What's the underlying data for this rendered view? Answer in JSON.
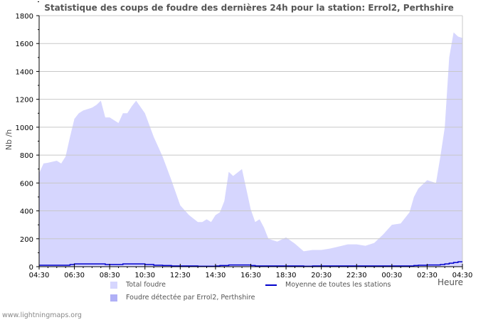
{
  "title": "Statistique des coups de foudre des dernières 24h pour la station: Errol2, Perthshire",
  "footer": "www.lightningmaps.org",
  "colors": {
    "total_fill": "#d6d6fe",
    "station_fill": "#b0b0f6",
    "average_line": "#0000cc",
    "grid": "#c8c8c8",
    "frame": "#c8c8c8"
  },
  "legend": {
    "total": "Total foudre",
    "station": "Foudre détectée par Errol2, Perthshire",
    "average": "Moyenne de toutes les stations"
  },
  "chart_data": {
    "type": "area",
    "title": "Statistique des coups de foudre des dernières 24h pour la station: Errol2, Perthshire",
    "xlabel": "Heure",
    "ylabel": "Nb /h",
    "ylim": [
      0,
      1800
    ],
    "yticks": [
      0,
      200,
      400,
      600,
      800,
      1000,
      1200,
      1400,
      1600,
      1800
    ],
    "xticks": [
      "04:30",
      "06:30",
      "08:30",
      "10:30",
      "12:30",
      "14:30",
      "16:30",
      "18:30",
      "20:30",
      "22:30",
      "00:30",
      "02:30",
      "04:30"
    ],
    "grid": true,
    "legend_position": "bottom",
    "x_hours": [
      0,
      0.25,
      0.5,
      1,
      1.25,
      1.5,
      1.75,
      2,
      2.25,
      2.5,
      3,
      3.25,
      3.5,
      3.75,
      4,
      4.5,
      4.75,
      5,
      5.25,
      5.5,
      6,
      6.5,
      7,
      7.5,
      8,
      8.5,
      9,
      9.25,
      9.5,
      9.75,
      10,
      10.25,
      10.5,
      10.75,
      11,
      11.5,
      12,
      12.25,
      12.5,
      12.75,
      13,
      13.5,
      14,
      14.5,
      15,
      15.5,
      16,
      16.5,
      17,
      17.5,
      18,
      18.5,
      19,
      19.5,
      20,
      20.5,
      21,
      21.25,
      21.5,
      22,
      22.5,
      22.75,
      23,
      23.25,
      23.5,
      23.75,
      24
    ],
    "series": [
      {
        "name": "Total foudre",
        "values": [
          670,
          740,
          745,
          760,
          740,
          790,
          930,
          1060,
          1100,
          1120,
          1140,
          1160,
          1190,
          1070,
          1070,
          1030,
          1100,
          1100,
          1150,
          1190,
          1100,
          930,
          790,
          620,
          440,
          370,
          320,
          320,
          340,
          320,
          370,
          390,
          470,
          680,
          650,
          700,
          410,
          320,
          340,
          280,
          200,
          180,
          210,
          165,
          110,
          120,
          120,
          130,
          145,
          160,
          160,
          150,
          170,
          230,
          300,
          310,
          390,
          500,
          560,
          620,
          600,
          790,
          1000,
          1500,
          1680,
          1650,
          1640
        ]
      },
      {
        "name": "Moyenne de toutes les stations",
        "values": [
          10,
          10,
          10,
          10,
          10,
          10,
          15,
          20,
          20,
          20,
          20,
          20,
          20,
          15,
          15,
          15,
          20,
          20,
          20,
          20,
          15,
          10,
          8,
          5,
          5,
          5,
          3,
          3,
          3,
          3,
          5,
          8,
          8,
          12,
          12,
          12,
          8,
          5,
          5,
          5,
          5,
          5,
          5,
          5,
          3,
          5,
          5,
          5,
          5,
          5,
          5,
          5,
          5,
          5,
          5,
          5,
          5,
          8,
          10,
          12,
          12,
          15,
          20,
          25,
          30,
          35,
          35
        ]
      },
      {
        "name": "Foudre détectée par Errol2, Perthshire",
        "values": []
      }
    ]
  }
}
